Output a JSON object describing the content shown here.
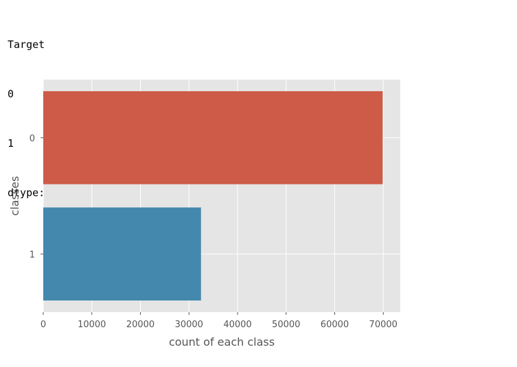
{
  "output": {
    "header": "Target",
    "rows": [
      {
        "index": "0",
        "value": "69878"
      },
      {
        "index": "1",
        "value": "32473"
      }
    ],
    "dtype": "dtype: int64"
  },
  "chart_data": {
    "type": "bar",
    "orientation": "horizontal",
    "categories": [
      "0",
      "1"
    ],
    "values": [
      69878,
      32473
    ],
    "colors": [
      "#cd5b48",
      "#4488ad"
    ],
    "title": "",
    "xlabel": "count of each class",
    "ylabel": "classes",
    "xlim": [
      0,
      73500
    ],
    "xticks": [
      0,
      10000,
      20000,
      30000,
      40000,
      50000,
      60000,
      70000
    ],
    "xtick_labels": [
      "0",
      "10000",
      "20000",
      "30000",
      "40000",
      "50000",
      "60000",
      "70000"
    ],
    "grid": true,
    "style": "ggplot",
    "background": "#e5e5e5",
    "gridline_color": "#ffffff"
  }
}
